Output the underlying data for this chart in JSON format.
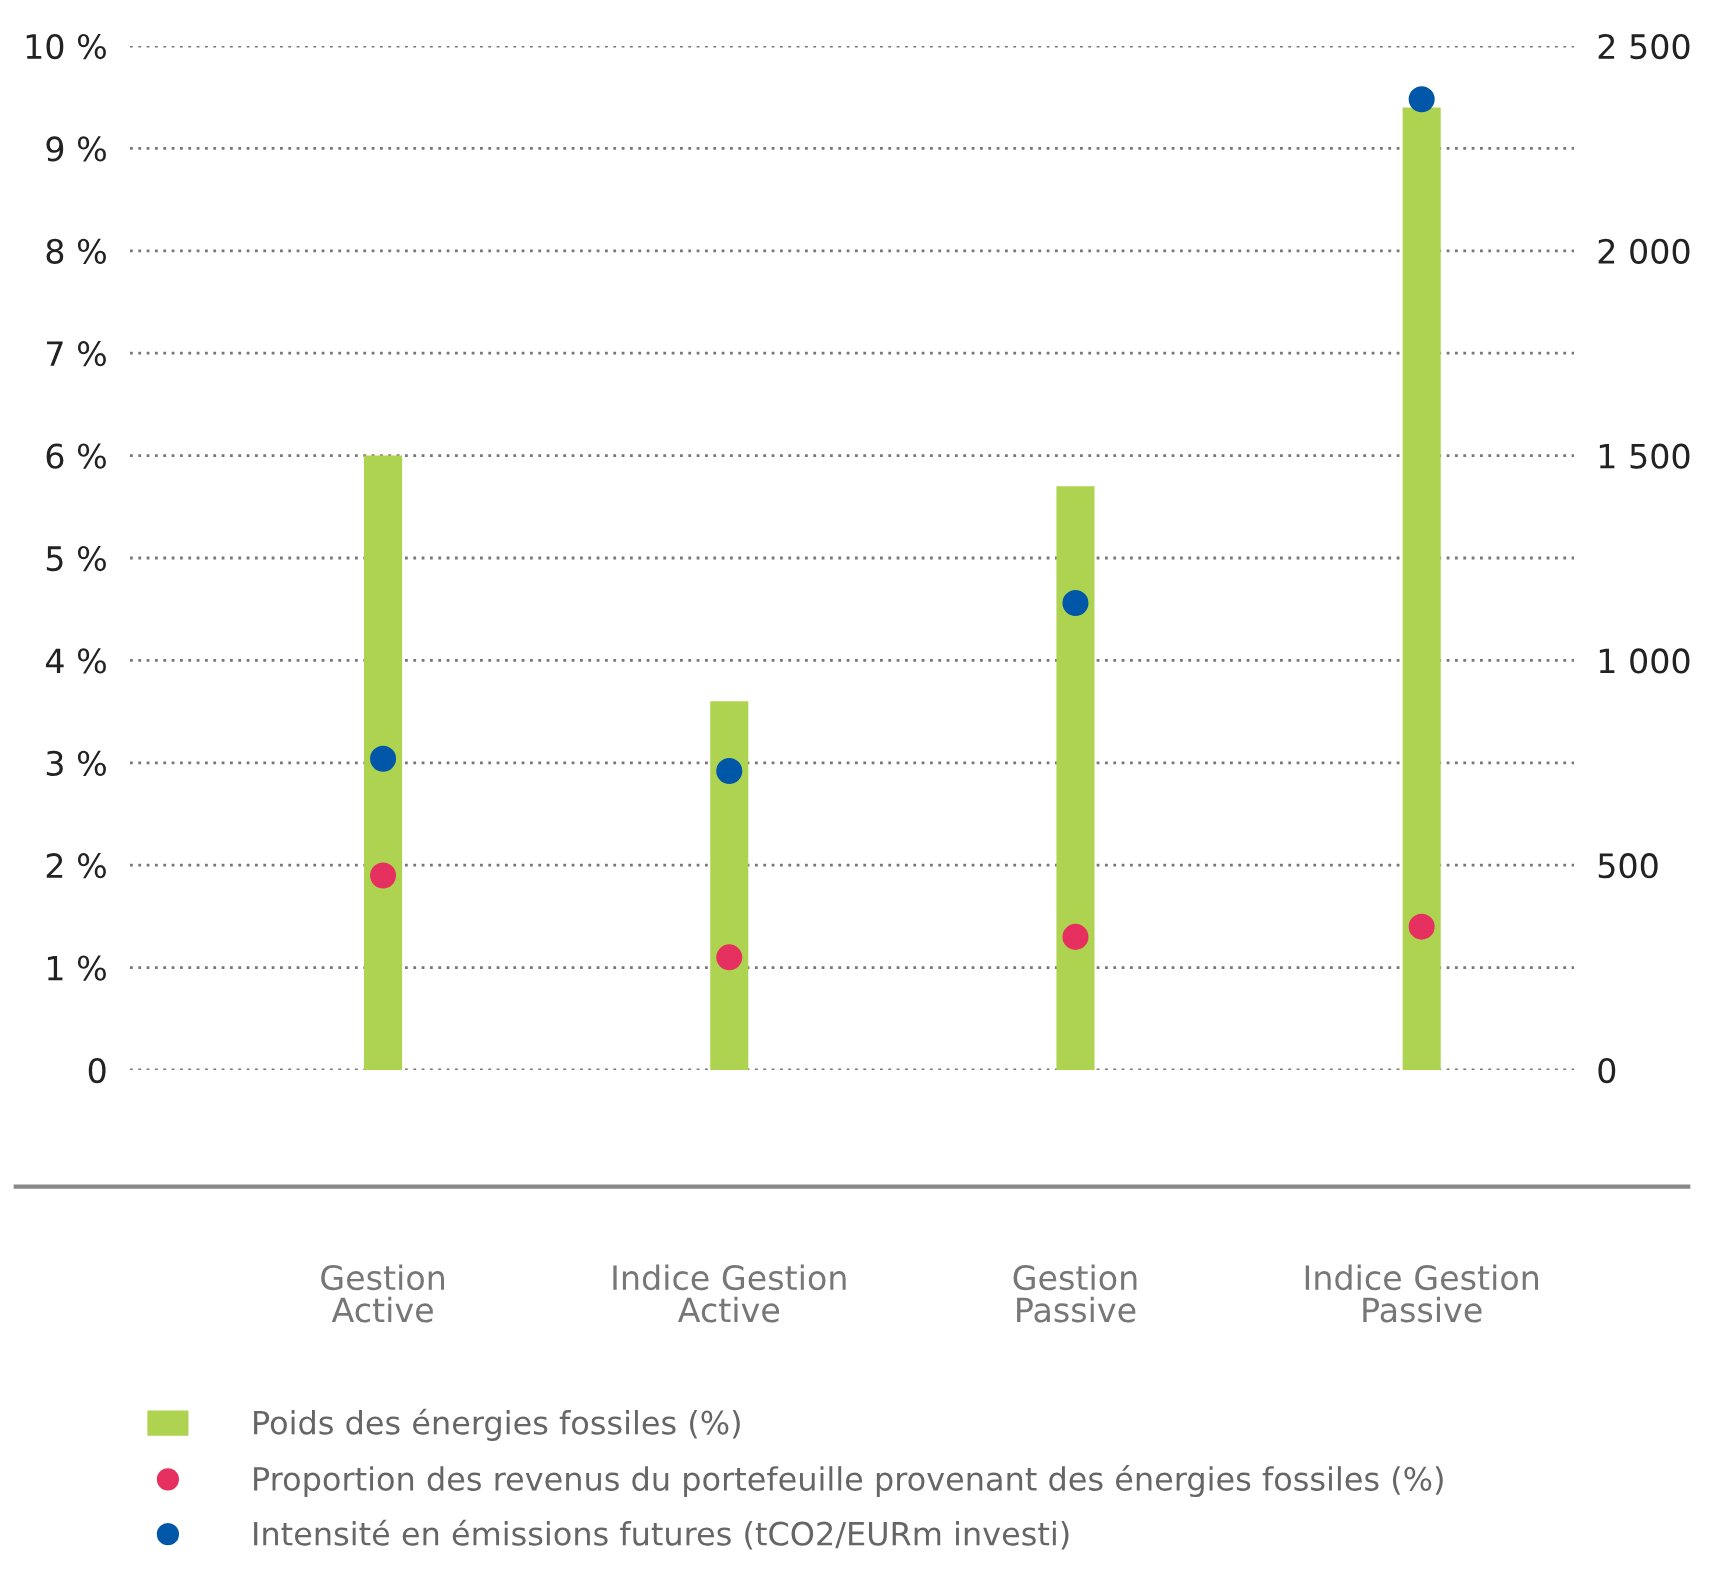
{
  "chart_data": {
    "type": "bar",
    "categories": [
      "Gestion\nActive",
      "Indice Gestion\nActive",
      "Gestion\nPassive",
      "Indice Gestion\nPassive"
    ],
    "series": [
      {
        "name": "Poids des énergies fossiles (%)",
        "color": "#aed350",
        "values": [
          6.0,
          3.6,
          5.7,
          9.4
        ]
      },
      {
        "name": "Proportion des revenus du portefeuille provenant des énergies fossiles (%)",
        "type": "scatter",
        "color": "#e6305f",
        "values": [
          1.9,
          1.1,
          1.3,
          1.4
        ]
      },
      {
        "name": "Intensité en émissions futures (tCO2/EURm investi)",
        "type": "scatter",
        "axis": "y2",
        "color": "#0057a8",
        "values": [
          760,
          730,
          1140,
          2370
        ]
      }
    ],
    "ylim": [
      0,
      10
    ],
    "yticks": [
      0,
      {
        "value": 1,
        "label": "1 %"
      },
      {
        "value": 2,
        "label": "2 %"
      },
      {
        "value": 3,
        "label": "3 %"
      },
      {
        "value": 4,
        "label": "4 %"
      },
      {
        "value": 5,
        "label": "5 %"
      },
      {
        "value": 6,
        "label": "6 %"
      },
      {
        "value": 7,
        "label": "7 %"
      },
      {
        "value": 8,
        "label": "8 %"
      },
      {
        "value": 9,
        "label": "9 %"
      },
      {
        "value": 10,
        "label": "10 %"
      }
    ],
    "y2lim": [
      0,
      2500
    ],
    "y2ticks": [
      0,
      500,
      {
        "value": 1000,
        "label": "1 000"
      },
      {
        "value": 1500,
        "label": "1 500"
      },
      {
        "value": 2000,
        "label": "2 000"
      },
      {
        "value": 2500,
        "label": "2 500"
      }
    ],
    "grid": "y",
    "legend": "bottom",
    "marker": "circle"
  }
}
